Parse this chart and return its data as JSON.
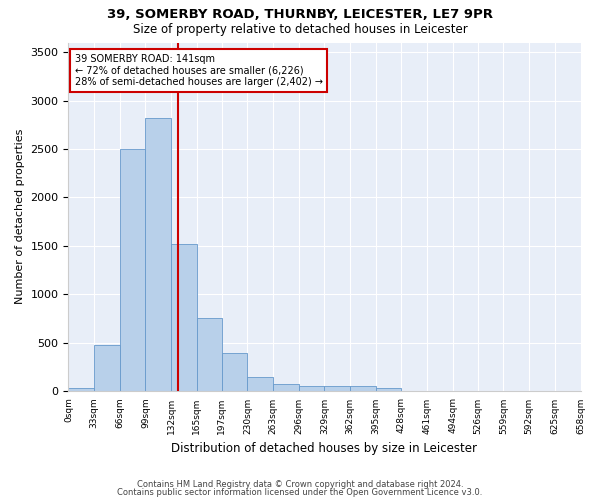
{
  "title1": "39, SOMERBY ROAD, THURNBY, LEICESTER, LE7 9PR",
  "title2": "Size of property relative to detached houses in Leicester",
  "xlabel": "Distribution of detached houses by size in Leicester",
  "ylabel": "Number of detached properties",
  "footer1": "Contains HM Land Registry data © Crown copyright and database right 2024.",
  "footer2": "Contains public sector information licensed under the Open Government Licence v3.0.",
  "annotation_line1": "39 SOMERBY ROAD: 141sqm",
  "annotation_line2": "← 72% of detached houses are smaller (6,226)",
  "annotation_line3": "28% of semi-detached houses are larger (2,402) →",
  "property_size": 141,
  "bin_edges": [
    0,
    33,
    66,
    99,
    132,
    165,
    197,
    230,
    263,
    296,
    329,
    362,
    395,
    428,
    461,
    494,
    526,
    559,
    592,
    625,
    658
  ],
  "bar_heights": [
    30,
    480,
    2500,
    2820,
    1520,
    750,
    390,
    145,
    70,
    55,
    55,
    55,
    30,
    5,
    0,
    0,
    0,
    0,
    0,
    0
  ],
  "bar_color": "#b8d0ea",
  "bar_edge_color": "#6699cc",
  "ref_line_color": "#cc0000",
  "ref_line_x": 141,
  "annotation_box_color": "#cc0000",
  "background_color": "#e8eef8",
  "ylim": [
    0,
    3600
  ],
  "yticks": [
    0,
    500,
    1000,
    1500,
    2000,
    2500,
    3000,
    3500
  ],
  "figsize": [
    6.0,
    5.0
  ],
  "dpi": 100
}
